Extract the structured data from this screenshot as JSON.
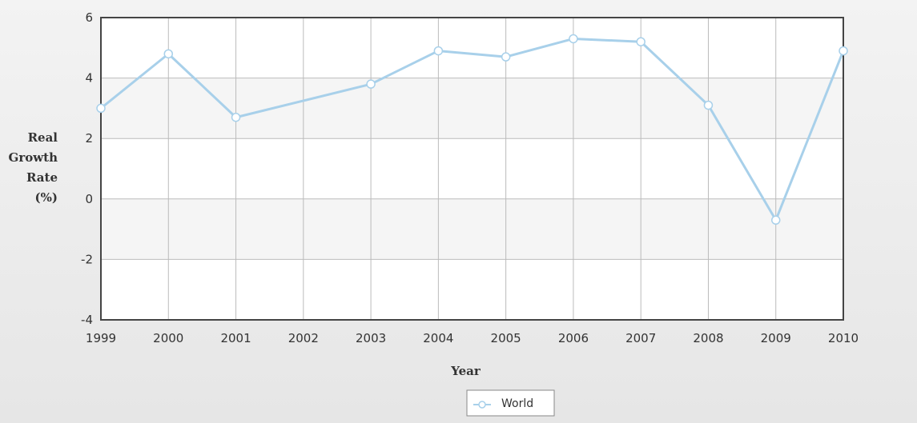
{
  "chart_data": {
    "type": "line",
    "x": [
      1999,
      2000,
      2001,
      2002,
      2003,
      2004,
      2005,
      2006,
      2007,
      2008,
      2009,
      2010
    ],
    "series": [
      {
        "name": "World",
        "x": [
          1999,
          2000,
          2001,
          2003,
          2004,
          2005,
          2006,
          2007,
          2008,
          2009,
          2010
        ],
        "values": [
          3.0,
          4.8,
          2.7,
          3.8,
          4.9,
          4.7,
          5.3,
          5.2,
          3.1,
          -0.7,
          4.9
        ],
        "color": "#a8d0ea"
      }
    ],
    "xlabel": "Year",
    "ylabel": [
      "Real",
      "Growth",
      "Rate",
      "(%)"
    ],
    "ylim": [
      -4,
      6
    ],
    "yticks": [
      -4,
      -2,
      0,
      2,
      4,
      6
    ],
    "xlim": [
      1999,
      2010
    ],
    "grid": true,
    "legend_position": "bottom-center"
  }
}
